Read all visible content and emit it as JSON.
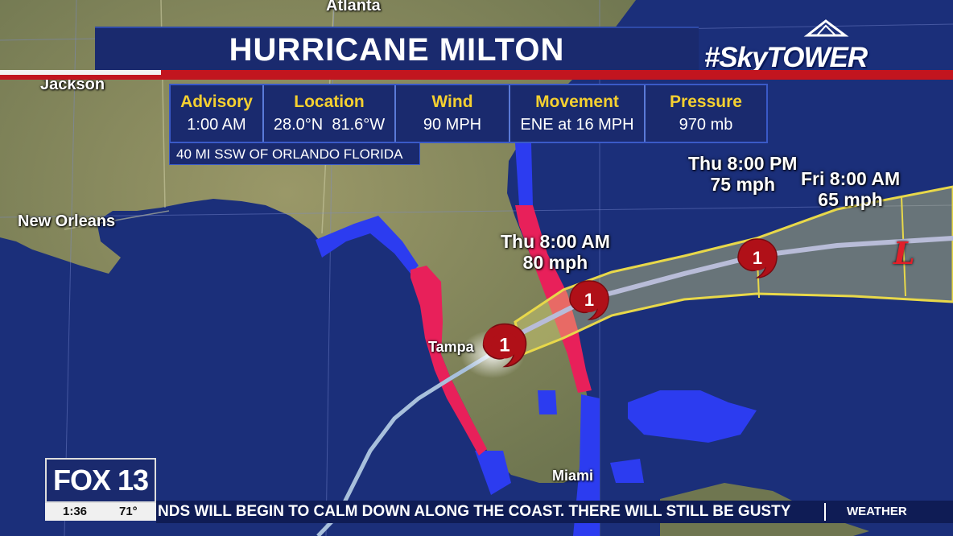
{
  "title": "HURRICANE MILTON",
  "brand": "#SkyTOWER",
  "info": [
    {
      "header": "Advisory",
      "value": "1:00 AM"
    },
    {
      "header": "Location",
      "value": "28.0°N  81.6°W"
    },
    {
      "header": "Wind",
      "value": "90 MPH"
    },
    {
      "header": "Movement",
      "value": "ENE at 16 MPH"
    },
    {
      "header": "Pressure",
      "value": "970 mb"
    }
  ],
  "distance": "40 MI SSW OF ORLANDO FLORIDA",
  "cities": {
    "atlanta": "Atlanta",
    "jackson": "Jackson",
    "new_orleans": "New Orleans",
    "tampa": "Tampa",
    "miami": "Miami"
  },
  "forecast_points": [
    {
      "time": "Thu 8:00 AM",
      "wind": "80 mph",
      "category": "1"
    },
    {
      "time": "Thu 8:00 PM",
      "wind": "75 mph",
      "category": "1"
    },
    {
      "time": "Fri 8:00 AM",
      "wind": "65 mph",
      "category": "L"
    }
  ],
  "current_storm": {
    "category": "1"
  },
  "colors": {
    "ocean": "#1b2f7a",
    "land": "#8a8c62",
    "hurricane_warning": "#e8205a",
    "tropical_storm_warning": "#2c3cf0",
    "cone": "#e8d84a",
    "storm_icon": "#b01018"
  },
  "logo": "FOX 13",
  "time": "1:36",
  "temperature": "71°",
  "ticker": {
    "text": "NDS WILL BEGIN TO CALM DOWN ALONG THE COAST. THERE WILL STILL BE GUSTY",
    "category": "WEATHER"
  }
}
